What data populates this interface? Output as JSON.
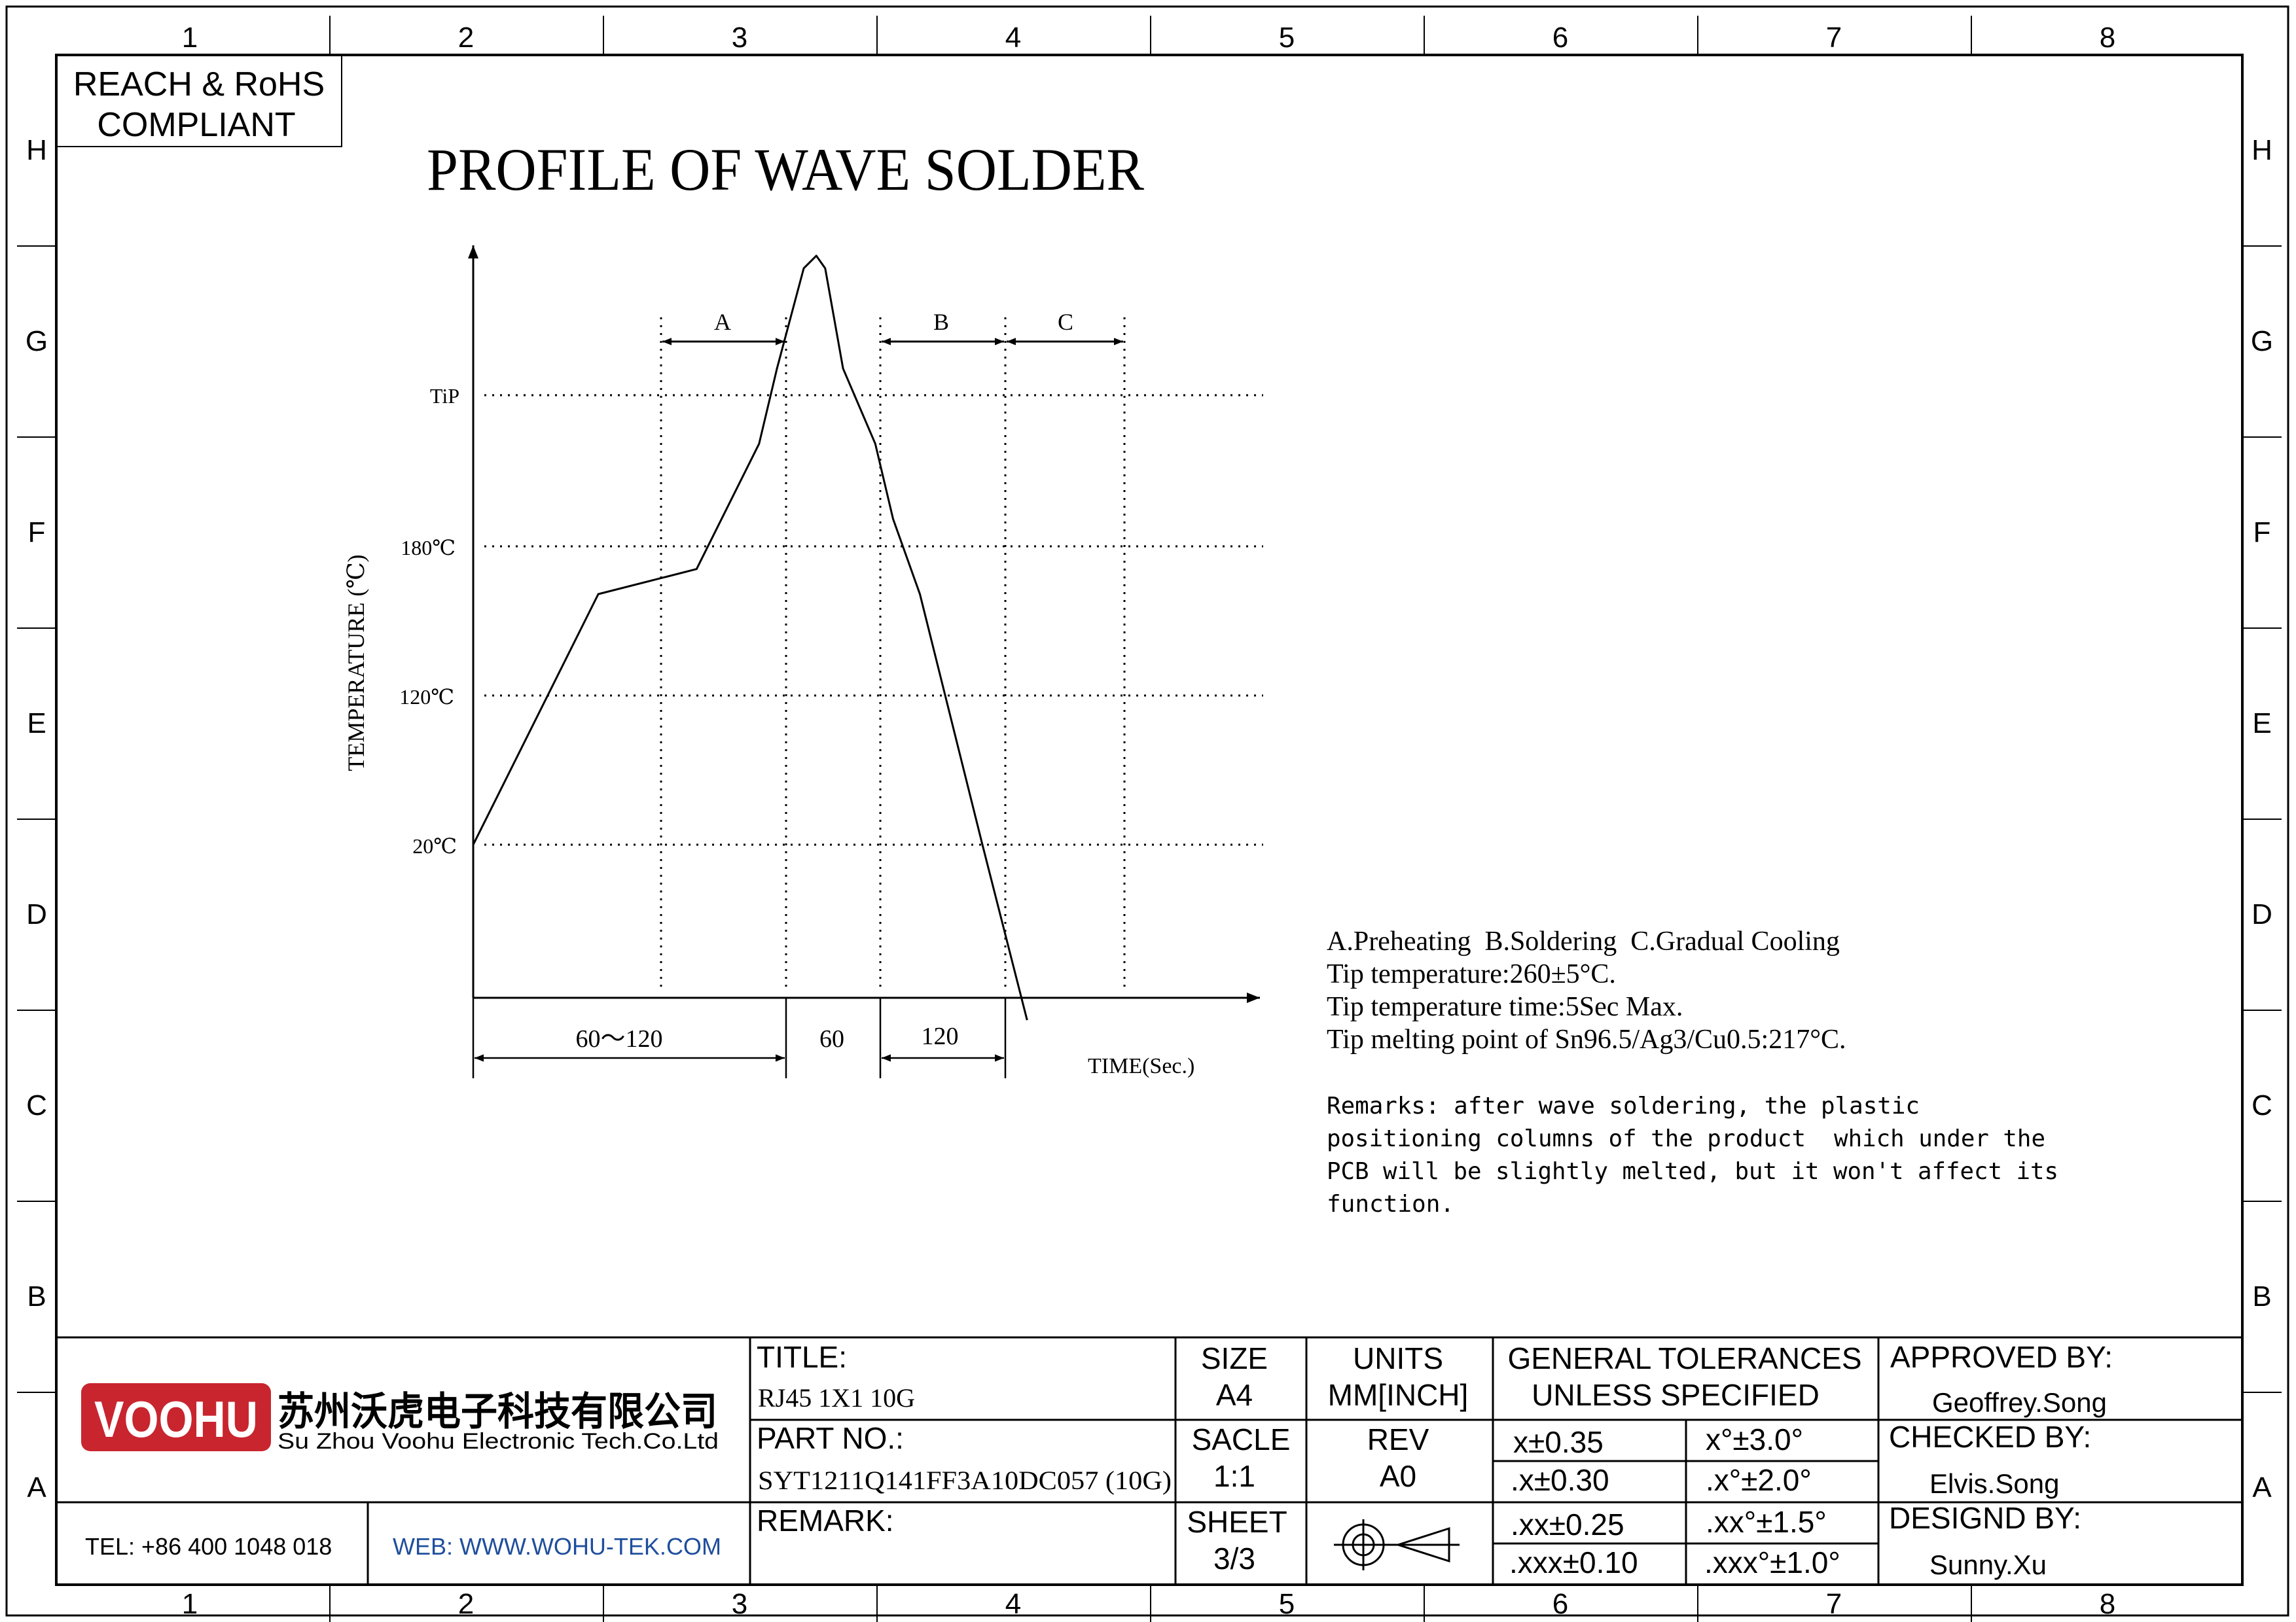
{
  "compliance": {
    "line1": "REACH & RoHS",
    "line2": "COMPLIANT"
  },
  "page_title": "PROFILE OF WAVE SOLDER",
  "border": {
    "columns": [
      "1",
      "2",
      "3",
      "4",
      "5",
      "6",
      "7",
      "8"
    ],
    "rows": [
      "H",
      "G",
      "F",
      "E",
      "D",
      "C",
      "B",
      "A"
    ]
  },
  "chart_data": {
    "type": "line",
    "ylabel": "TEMPERATURE (℃)",
    "xlabel": "TIME(Sec.)",
    "y_ticks": [
      "TiP",
      "180℃",
      "120℃",
      "20℃"
    ],
    "zones": [
      "A",
      "B",
      "C"
    ],
    "time_segments": [
      "60～120",
      "60",
      "120"
    ],
    "profile_points": [
      [
        0,
        20
      ],
      [
        70,
        120
      ],
      [
        125,
        130
      ],
      [
        160,
        180
      ],
      [
        170,
        210
      ],
      [
        185,
        250
      ],
      [
        192,
        255
      ],
      [
        197,
        250
      ],
      [
        207,
        210
      ],
      [
        225,
        180
      ],
      [
        235,
        150
      ],
      [
        250,
        120
      ],
      [
        285,
        20
      ],
      [
        310,
        -50
      ]
    ]
  },
  "notes": {
    "line1": "A.Preheating  B.Soldering  C.Gradual Cooling",
    "line2": "Tip temperature:260±5°C.",
    "line3": "Tip temperature time:5Sec Max.",
    "line4": "Tip melting point of Sn96.5/Ag3/Cu0.5:217°C.",
    "remarks": [
      "Remarks: after wave soldering, the plastic",
      "positioning columns of the product  which under the",
      "PCB will be slightly melted, but it won't affect its",
      "function."
    ]
  },
  "title_block": {
    "logo_text": "VOOHU",
    "company_cn": "苏州沃虎电子科技有限公司",
    "company_en": "Su Zhou Voohu Electronic Tech.Co.Ltd",
    "tel": "TEL: +86 400 1048 018",
    "web": "WEB: WWW.WOHU-TEK.COM",
    "title_label": "TITLE:",
    "title_value": "RJ45 1X1 10G",
    "part_label": "PART NO.:",
    "part_value": "SYT1211Q141FF3A10DC057 (10G)",
    "remark_label": "REMARK:",
    "size_label": "SIZE",
    "size_value": "A4",
    "scale_label": "SACLE",
    "scale_value": "1:1",
    "sheet_label": "SHEET",
    "sheet_value": "3/3",
    "units_label": "UNITS",
    "units_value": "MM[INCH]",
    "rev_label": "REV",
    "rev_value": "A0",
    "tol_title_1": "GENERAL TOLERANCES",
    "tol_title_2": "UNLESS SPECIFIED",
    "tolerances": [
      [
        "x±0.35",
        "x°±3.0°"
      ],
      [
        ".x±0.30",
        ".x°±2.0°"
      ],
      [
        ".xx±0.25",
        ".xx°±1.5°"
      ],
      [
        ".xxx±0.10",
        ".xxx°±1.0°"
      ]
    ],
    "approved_label": "APPROVED BY:",
    "approved_name": "Geoffrey.Song",
    "checked_label": "CHECKED BY:",
    "checked_name": "Elvis.Song",
    "designed_label": "DESIGND BY:",
    "designed_name": "Sunny.Xu"
  },
  "colors": {
    "logo_red": "#c8252f",
    "web_blue": "#1f4e9c",
    "ink": "#000000"
  }
}
